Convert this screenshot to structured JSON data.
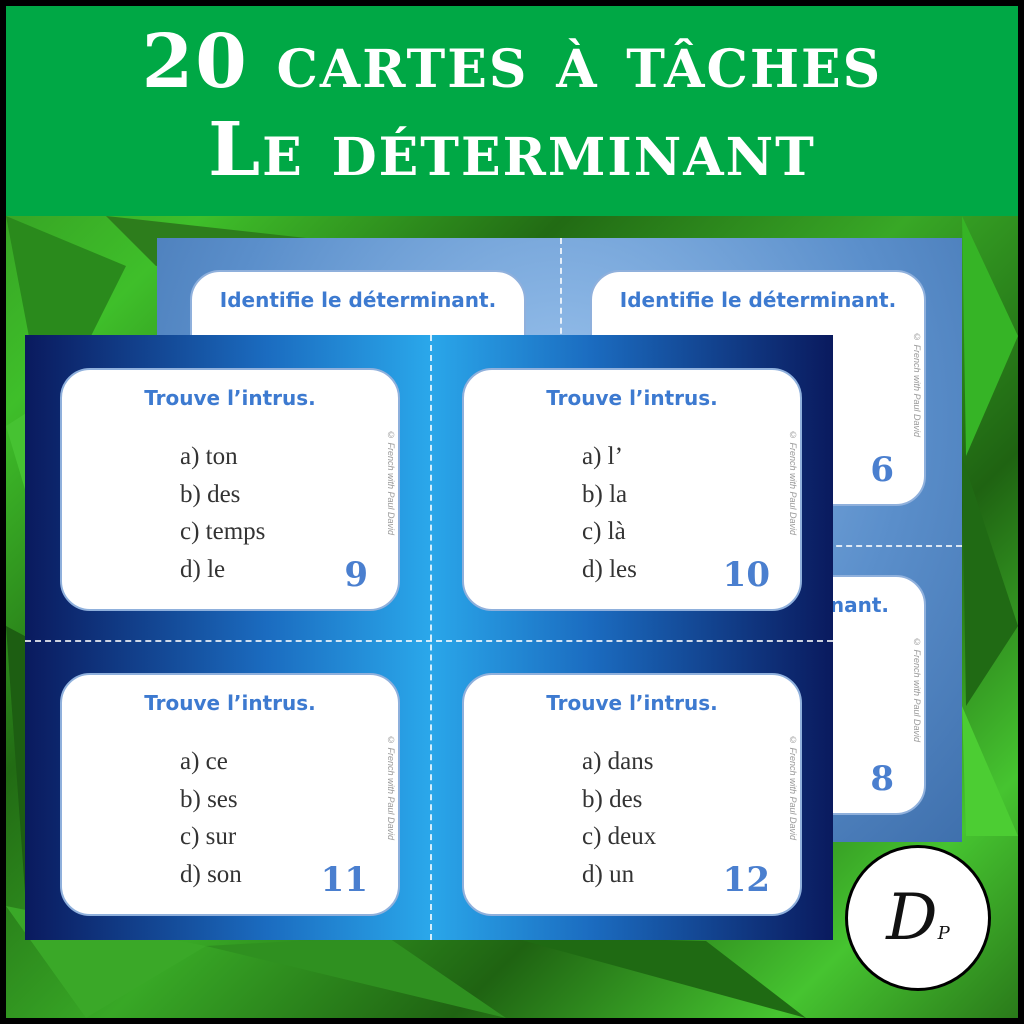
{
  "header": {
    "line1": "20 cartes à tâches",
    "line2": "Le déterminant"
  },
  "colors": {
    "header_green": "#00a845",
    "card_title_blue": "#3d7ad0",
    "number_blue": "#4a7fcf"
  },
  "copyright": "© French with Paul David",
  "back_sheet": {
    "cards": [
      {
        "title": "Identifie le déterminant.",
        "number": ""
      },
      {
        "title": "Identifie le déterminant.",
        "number": "6"
      },
      {
        "title": "nant.",
        "number": "8"
      }
    ]
  },
  "front_sheet": {
    "cards": [
      {
        "title": "Trouve l’intrus.",
        "options": [
          "a) ton",
          "b) des",
          "c) temps",
          "d) le"
        ],
        "number": "9"
      },
      {
        "title": "Trouve l’intrus.",
        "options": [
          "a) l’",
          "b) la",
          "c) là",
          "d) les"
        ],
        "number": "10"
      },
      {
        "title": "Trouve l’intrus.",
        "options": [
          "a) ce",
          "b) ses",
          "c) sur",
          "d) son"
        ],
        "number": "11"
      },
      {
        "title": "Trouve l’intrus.",
        "options": [
          "a) dans",
          "b) des",
          "c) deux",
          "d) un"
        ],
        "number": "12"
      }
    ]
  },
  "logo": {
    "letters": "D",
    "sub": "P"
  }
}
